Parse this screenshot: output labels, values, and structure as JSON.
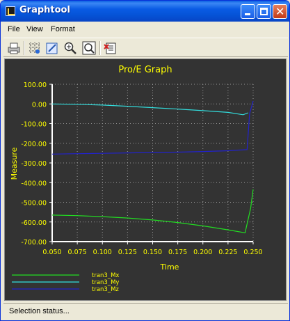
{
  "window": {
    "title": "Graphtool",
    "title_icon": "graph-app-icon"
  },
  "menu": {
    "file": "File",
    "view": "View",
    "format": "Format"
  },
  "toolbar": {
    "tools": [
      "print-icon",
      "grid-icon",
      "edit-graph-icon",
      "zoom-in-icon",
      "zoom-fit-icon",
      "export-icon"
    ]
  },
  "status": {
    "text": "Selection status..."
  },
  "chart_data": {
    "type": "line",
    "title": "Pro/E Graph",
    "xlabel": "Time",
    "ylabel": "Measure",
    "xlim": [
      0.05,
      0.25
    ],
    "ylim": [
      -700,
      100
    ],
    "grid": true,
    "legend_position": "bottom-left",
    "x_ticks": [
      "0.050",
      "0.075",
      "0.100",
      "0.125",
      "0.150",
      "0.175",
      "0.200",
      "0.225",
      "0.250"
    ],
    "y_ticks": [
      "100.00",
      "0.00",
      "-100.00",
      "-200.00",
      "-300.00",
      "-400.00",
      "-500.00",
      "-600.00",
      "-700.00"
    ],
    "colors": {
      "background": "#333333",
      "text": "#ffff00",
      "axes": "#ffffff",
      "grid": "#9a9a9a"
    },
    "series": [
      {
        "name": "tran3_Mx",
        "color": "#22dd22",
        "x": [
          0.05,
          0.075,
          0.1,
          0.125,
          0.15,
          0.175,
          0.2,
          0.225,
          0.242,
          0.2475,
          0.25
        ],
        "y": [
          -565,
          -568,
          -573,
          -580,
          -590,
          -603,
          -620,
          -640,
          -655,
          -530,
          -435
        ]
      },
      {
        "name": "tran3_My",
        "color": "#33dddd",
        "x": [
          0.05,
          0.075,
          0.1,
          0.125,
          0.15,
          0.175,
          0.2,
          0.225,
          0.24,
          0.245
        ],
        "y": [
          0,
          -2,
          -6,
          -12,
          -19,
          -26,
          -34,
          -43,
          -55,
          -45
        ]
      },
      {
        "name": "tran3_Mz",
        "color": "#2222cc",
        "x": [
          0.05,
          0.075,
          0.1,
          0.125,
          0.15,
          0.175,
          0.2,
          0.225,
          0.244,
          0.2465,
          0.25
        ],
        "y": [
          -255,
          -253,
          -251,
          -249,
          -247,
          -245,
          -242,
          -238,
          -232,
          -50,
          15
        ]
      }
    ]
  }
}
